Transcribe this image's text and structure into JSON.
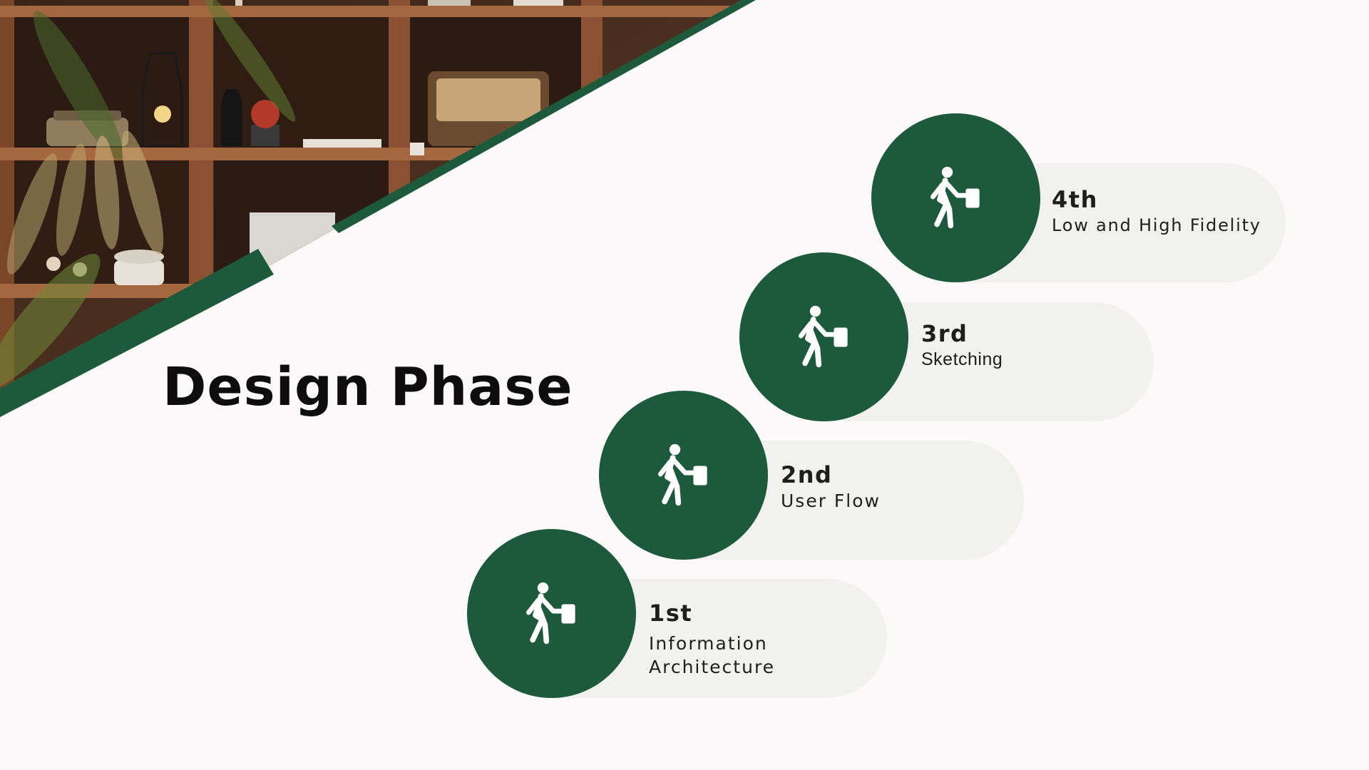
{
  "title": "Design Phase",
  "colors": {
    "accent_green": "#1d5a3b",
    "pill_gray": "#f1f1f0",
    "background": "#fbf9f9",
    "title_text": "#0d0d0d"
  },
  "background_image": {
    "subject": "wooden bookshelf with vintage typewriter, lamp, radio, telephone and plants"
  },
  "steps": [
    {
      "ordinal": "1st",
      "label": "Information Architecture",
      "icon": "walking-person-with-briefcase-icon"
    },
    {
      "ordinal": "2nd",
      "label": "User Flow",
      "icon": "walking-person-with-briefcase-icon"
    },
    {
      "ordinal": "3rd",
      "label": "Sketching",
      "icon": "walking-person-with-briefcase-icon"
    },
    {
      "ordinal": "4th",
      "label": "Low and High Fidelity",
      "icon": "walking-person-with-briefcase-icon"
    }
  ]
}
